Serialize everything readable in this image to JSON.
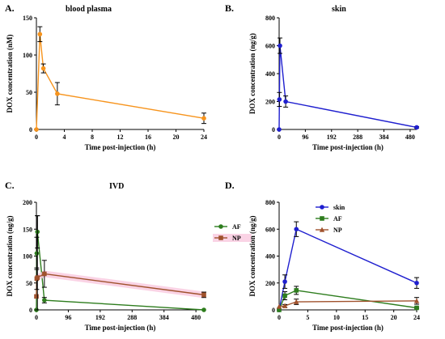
{
  "chart_data": [
    {
      "type": "line",
      "panel_label": "A.",
      "title": "blood plasma",
      "xlabel": "Time post-injection (h)",
      "ylabel": "DOX concentration (nM)",
      "xlim": [
        0,
        24
      ],
      "ylim": [
        0,
        150
      ],
      "xticks": [
        0,
        4,
        8,
        12,
        16,
        20,
        24
      ],
      "yticks": [
        0,
        50,
        100,
        150
      ],
      "legend": "none",
      "series": [
        {
          "color": "#f7941d",
          "marker": "circle",
          "x": [
            0,
            0.5,
            1,
            3,
            24
          ],
          "y": [
            0,
            128,
            82,
            48,
            15
          ],
          "err": [
            0,
            10,
            6,
            15,
            7
          ]
        }
      ]
    },
    {
      "type": "line",
      "panel_label": "B.",
      "title": "skin",
      "xlabel": "Time post-injection (h)",
      "ylabel": "DOX concentration (ng/g)",
      "xlim": [
        0,
        504
      ],
      "ylim": [
        0,
        800
      ],
      "xticks": [
        0,
        96,
        192,
        288,
        384,
        480
      ],
      "yticks": [
        0,
        200,
        400,
        600,
        800
      ],
      "legend": "none",
      "series": [
        {
          "color": "#1f1fcf",
          "marker": "circle",
          "x": [
            0,
            1,
            3,
            24,
            504
          ],
          "y": [
            0,
            215,
            600,
            200,
            15
          ],
          "err": [
            0,
            50,
            55,
            40,
            5
          ]
        }
      ]
    },
    {
      "type": "line",
      "panel_label": "C.",
      "title": "IVD",
      "xlabel": "Time post-injection (h)",
      "ylabel": "DOX concentration (ng/g)",
      "xlim": [
        0,
        504
      ],
      "ylim": [
        0,
        200
      ],
      "xticks": [
        0,
        96,
        192,
        288,
        384,
        480
      ],
      "yticks": [
        0,
        50,
        100,
        150,
        200
      ],
      "legend": "right",
      "series": [
        {
          "name": "AF",
          "color": "#2e7d1e",
          "marker": "circle",
          "x": [
            0,
            1,
            3,
            24,
            504
          ],
          "y": [
            0,
            105,
            145,
            18,
            0
          ],
          "err": [
            0,
            30,
            30,
            5,
            0
          ]
        },
        {
          "name": "NP",
          "color": "#a0522d",
          "marker": "square",
          "band": "#f9c8de",
          "x": [
            0,
            1,
            3,
            24,
            504
          ],
          "y": [
            25,
            58,
            60,
            67,
            28
          ],
          "err": [
            0,
            20,
            115,
            25,
            5
          ]
        }
      ]
    },
    {
      "type": "line",
      "panel_label": "D.",
      "title": "",
      "xlabel": "Time post-injection (h)",
      "ylabel": "DOX concentration (ng/g)",
      "xlim": [
        0,
        24
      ],
      "ylim": [
        0,
        800
      ],
      "xticks": [
        0,
        5,
        10,
        15,
        20,
        24
      ],
      "yticks": [
        0,
        200,
        400,
        600,
        800
      ],
      "legend": "top-center",
      "series": [
        {
          "name": "skin",
          "color": "#1f1fcf",
          "marker": "circle",
          "x": [
            0,
            1,
            3,
            24
          ],
          "y": [
            0,
            210,
            600,
            200
          ],
          "err": [
            0,
            50,
            55,
            40
          ]
        },
        {
          "name": "AF",
          "color": "#2e7d1e",
          "marker": "square",
          "x": [
            0,
            1,
            3,
            24
          ],
          "y": [
            0,
            105,
            145,
            15
          ],
          "err": [
            0,
            30,
            30,
            5
          ]
        },
        {
          "name": "NP",
          "color": "#a0522d",
          "marker": "triangle",
          "x": [
            0,
            1,
            3,
            24
          ],
          "y": [
            25,
            30,
            60,
            67
          ],
          "err": [
            0,
            10,
            20,
            25
          ]
        }
      ]
    }
  ]
}
